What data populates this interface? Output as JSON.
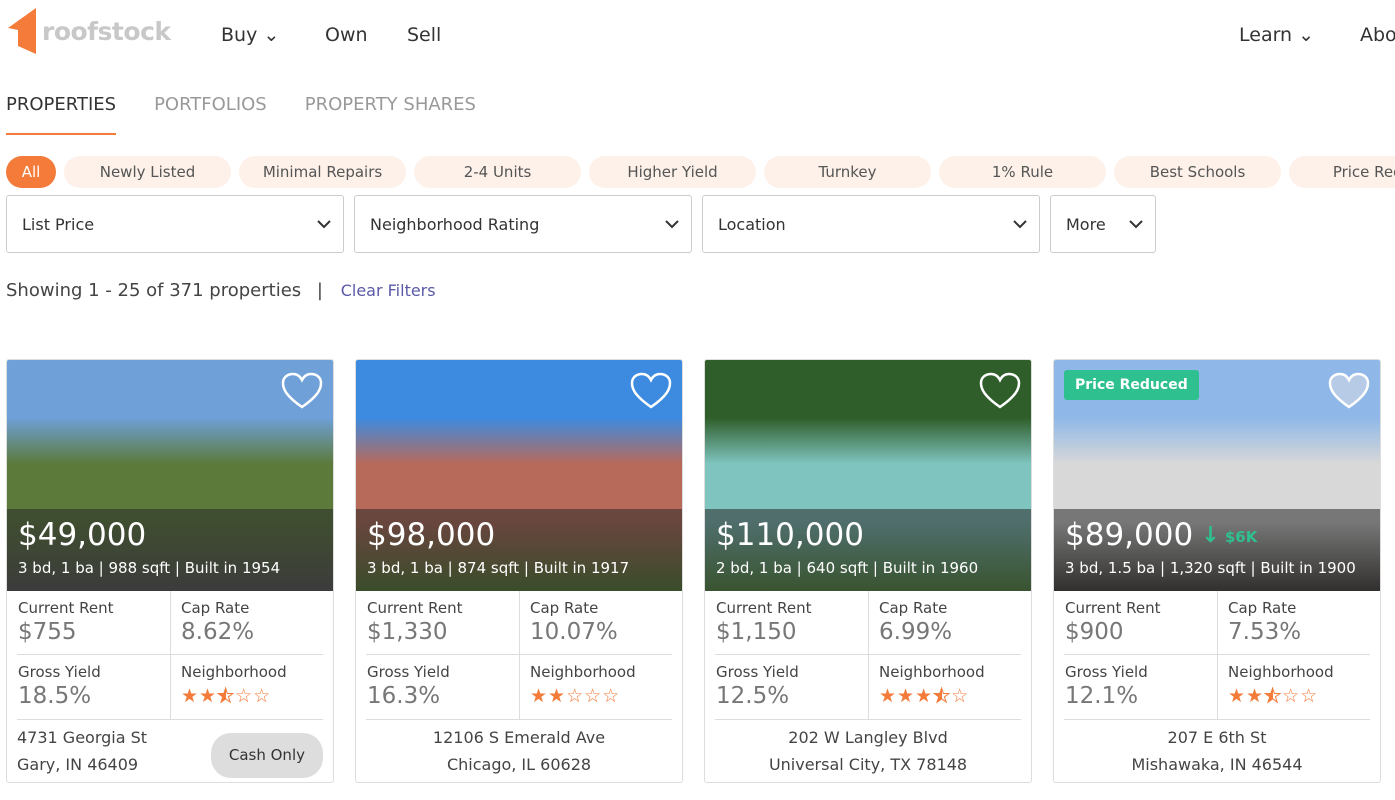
{
  "brand": {
    "name": "roofstock",
    "accent": "#f47b3a",
    "green": "#2ec08e"
  },
  "nav": {
    "buy": "Buy",
    "own": "Own",
    "sell": "Sell",
    "learn": "Learn",
    "about": "Abo"
  },
  "tabs": [
    "PROPERTIES",
    "PORTFOLIOS",
    "PROPERTY SHARES"
  ],
  "chips": [
    "All",
    "Newly Listed",
    "Minimal Repairs",
    "2-4 Units",
    "Higher Yield",
    "Turnkey",
    "1% Rule",
    "Best Schools",
    "Price Redu"
  ],
  "filters": [
    "List Price",
    "Neighborhood Rating",
    "Location",
    "More"
  ],
  "results": {
    "showing": "Showing 1 - 25 of 371 properties",
    "sep": "|",
    "clear": "Clear Filters"
  },
  "labels": {
    "rent": "Current Rent",
    "cap": "Cap Rate",
    "yield": "Gross Yield",
    "hood": "Neighborhood"
  },
  "cards": [
    {
      "price": "$49,000",
      "specs": "3 bd, 1 ba | 988 sqft | Built in 1954",
      "rent": "$755",
      "cap": "8.62%",
      "yield": "18.5%",
      "rating": 2.5,
      "line1": "4731 Georgia St",
      "line2": "Gary, IN 46409",
      "tag": "Cash Only",
      "badge": "",
      "drop": "",
      "photo": [
        "#6fa0d8",
        "#5c7a3a",
        "#555"
      ]
    },
    {
      "price": "$98,000",
      "specs": "3 bd, 1 ba | 874 sqft | Built in 1917",
      "rent": "$1,330",
      "cap": "10.07%",
      "yield": "16.3%",
      "rating": 2,
      "line1": "12106 S Emerald Ave",
      "line2": "Chicago, IL 60628",
      "tag": "",
      "badge": "",
      "drop": "",
      "photo": [
        "#3d8be0",
        "#b86a5a",
        "#4f7a2e"
      ]
    },
    {
      "price": "$110,000",
      "specs": "2 bd, 1 ba | 640 sqft | Built in 1960",
      "rent": "$1,150",
      "cap": "6.99%",
      "yield": "12.5%",
      "rating": 3.5,
      "line1": "202 W Langley Blvd",
      "line2": "Universal City, TX 78148",
      "tag": "",
      "badge": "",
      "drop": "",
      "photo": [
        "#2f5e2a",
        "#7fc4bf",
        "#4f8a3a"
      ]
    },
    {
      "price": "$89,000",
      "specs": "3 bd, 1.5 ba | 1,320 sqft | Built in 1900",
      "rent": "$900",
      "cap": "7.53%",
      "yield": "12.1%",
      "rating": 2.5,
      "line1": "207 E 6th St",
      "line2": "Mishawaka, IN 46544",
      "tag": "",
      "badge": "Price Reduced",
      "drop": "$6K",
      "photo": [
        "#8fb8e8",
        "#d8d8d8",
        "#3e3a36"
      ]
    }
  ]
}
